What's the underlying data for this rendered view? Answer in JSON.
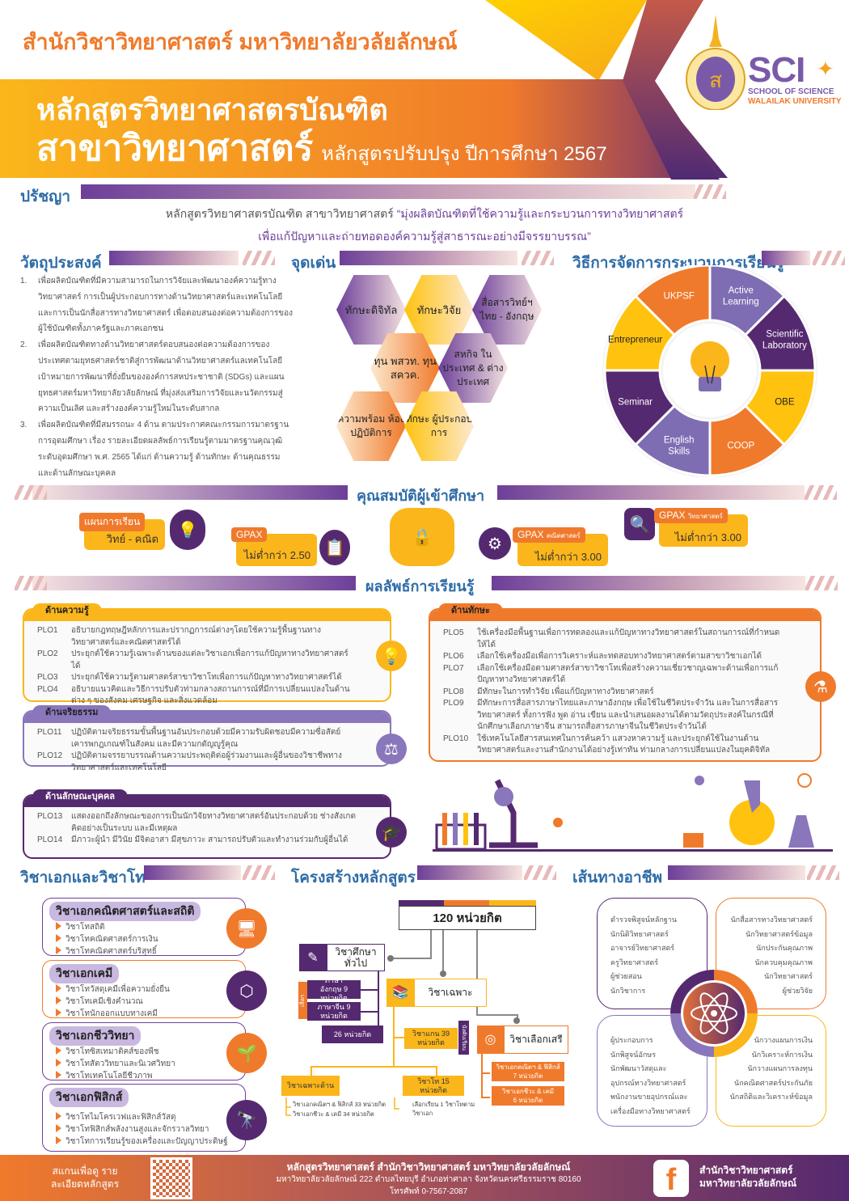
{
  "header": {
    "faculty": "สำนักวิชาวิทยาศาสตร์ มหาวิทยาลัยวลัยลักษณ์",
    "title_line1": "หลักสูตรวิทยาศาสตรบัณฑิต",
    "title_line2": "สาขาวิทยาศาสตร์",
    "title_sub": "หลักสูตรปรับปรุง ปีการศึกษา 2567",
    "logo_text": "SCI",
    "logo_sub1": "SCHOOL OF SCIENCE",
    "logo_sub2": "WALAILAK UNIVERSITY"
  },
  "philosophy": {
    "heading": "ปรัชญา",
    "lead": "หลักสูตรวิทยาศาสตรบัณฑิต สาขาวิทยาศาสตร์",
    "quote1": "“มุ่งผลิตบัณฑิตที่ใช้ความรู้และกระบวนการทางวิทยาศาสตร์",
    "quote2": "เพื่อแก้ปัญหาและถ่ายทอดองค์ความรู้สู่สาธารณะอย่างมีจรรยาบรรณ”"
  },
  "objectives": {
    "heading": "วัตถุประสงค์",
    "items": [
      {
        "n": "1.",
        "text": "เพื่อผลิตบัณฑิตที่มีความสามารถในการวิจัยและพัฒนาองค์ความรู้ทางวิทยาศาสตร์ การเป็นผู้ประกอบการทางด้านวิทยาศาสตร์และเทคโนโลยี และการเป็นนักสื่อสารทางวิทยาศาสตร์ เพื่อตอบสนองต่อความต้องการของผู้ใช้บัณฑิตทั้งภาครัฐและภาคเอกชน"
      },
      {
        "n": "2.",
        "text": "เพื่อผลิตบัณฑิตทางด้านวิทยาศาสตร์ตอบสนองต่อความต้องการของประเทศตามยุทธศาสตร์ชาติสู่การพัฒนาด้านวิทยาศาสตร์แลเทคโนโลยี เป้าหมายการพัฒนาที่ยั่งยืนขององค์การสหประชาชาติ (SDGs) และแผนยุทธศาสตร์มหาวิทยาลัยวลัยลักษณ์ ที่มุ่งส่งเสริมการวิจัยและนวัตกรรมสู่ความเป็นเลิศ และสร้างองค์ความรู้ใหม่ในระดับสากล"
      },
      {
        "n": "3.",
        "text": "เพื่อผลิตบัณฑิตที่มีสมรรถนะ 4 ด้าน ตามประกาศคณะกรรมการมาตรฐานการอุดมศึกษา เรื่อง รายละเอียดผลลัพธ์การเรียนรู้ตามมาตรฐานคุณวุฒิระดับอุดมศึกษา พ.ศ. 2565 ได้แก่ ด้านความรู้ ด้านทักษะ ด้านคุณธรรม และด้านลักษณะบุคคล"
      }
    ]
  },
  "highlights": {
    "heading": "จุดเด่น",
    "items": [
      "ทักษะดิจิทัล",
      "ทักษะวิจัย",
      "สื่อสารวิทย์ฯ ไทย - อังกฤษ",
      "ทุน พสวท. ทุน สควค.",
      "สหกิจ ในประเทศ & ต่างประเทศ",
      "ความพร้อม ห้องปฏิบัติการ",
      "ทักษะ ผู้ประกอบการ"
    ]
  },
  "learning": {
    "heading": "วิธีการจัดการกระบวนการเรียนรู้",
    "segments": [
      {
        "label": "Active Learning",
        "color": "#7f6db3"
      },
      {
        "label": "Scientific Laboratory",
        "color": "#55296f"
      },
      {
        "label": "OBE",
        "color": "#ffc20e"
      },
      {
        "label": "COOP",
        "color": "#f07a2b"
      },
      {
        "label": "English Skills",
        "color": "#7f6db3"
      },
      {
        "label": "Seminar",
        "color": "#55296f"
      },
      {
        "label": "Entrepreneur",
        "color": "#ffc20e"
      },
      {
        "label": "UKPSF",
        "color": "#f07a2b"
      }
    ]
  },
  "admission": {
    "heading": "คุณสมบัติผู้เข้าศึกษา",
    "items": [
      {
        "tag": "แผนการเรียน",
        "value": "วิทย์ - คณิต"
      },
      {
        "tag": "GPAX",
        "value": "ไม่ต่ำกว่า 2.50"
      },
      {
        "tag": "GPAX",
        "tag_sub": "คณิตศาสตร์",
        "value": "ไม่ต่ำกว่า 3.00"
      },
      {
        "tag": "GPAX",
        "tag_sub": "วิทยาศาสตร์",
        "value": "ไม่ต่ำกว่า 3.00"
      }
    ]
  },
  "outcomes": {
    "heading": "ผลลัพธ์การเรียนรู้",
    "knowledge": {
      "title": "ด้านความรู้",
      "rows": [
        {
          "code": "PLO1",
          "text": "อธิบายกฎทฤษฎีหลักการและปรากฏการณ์ต่างๆโดยใช้ความรู้พื้นฐานทางวิทยาศาสตร์และคณิตศาสตร์ได้"
        },
        {
          "code": "PLO2",
          "text": "ประยุกต์ใช้ความรู้เฉพาะด้านของแต่ละวิชาเอกเพื่อการแก้ปัญหาทางวิทยาศาสตร์ได้"
        },
        {
          "code": "PLO3",
          "text": "ประยุกต์ใช้ความรู้ตามศาสตร์สาขาวิชาโทเพื่อการแก้ปัญหาทางวิทยาศาสตร์ได้"
        },
        {
          "code": "PLO4",
          "text": "อธิบายแนวคิดและวิธีการปรับตัวท่ามกลางสถานการณ์ที่มีการเปลี่ยนแปลงในด้านต่าง ๆ ของสังคม เศรษฐกิจ และสิ่งแวดล้อม"
        }
      ]
    },
    "ethics": {
      "title": "ด้านจริยธรรม",
      "rows": [
        {
          "code": "PLO11",
          "text": "ปฏิบัติตามจริยธรรมขั้นพื้นฐานอันประกอบด้วยมีความรับผิดชอบมีความซื่อสัตย์เคารพกฎเกณฑ์ในสังคม และมีความกตัญญูรู้คุณ"
        },
        {
          "code": "PLO12",
          "text": "ปฏิบัติตามจรรยาบรรณด้านความประพฤติต่อผู้ร่วมงานและผู้อื่นของวิชาชีพทางวิทยาศาสตร์และเทคโนโลยี"
        }
      ]
    },
    "character": {
      "title": "ด้านลักษณะบุคคล",
      "rows": [
        {
          "code": "PLO13",
          "text": "แสดงออกถึงลักษณะของการเป็นนักวิจัยทางวิทยาศาสตร์อันประกอบด้วย ช่างสังเกต คิดอย่างเป็นระบบ และมีเหตุผล"
        },
        {
          "code": "PLO14",
          "text": "มีภาวะผู้นำ มีวินัย มีจิตอาสา มีสุขภาวะ สามารถปรับตัวและทำงานร่วมกับผู้อื่นได้"
        }
      ]
    },
    "skills": {
      "title": "ด้านทักษะ",
      "rows": [
        {
          "code": "PLO5",
          "text": "ใช้เครื่องมือพื้นฐานเพื่อการทดลองและแก้ปัญหาทางวิทยาศาสตร์ในสถานการณ์ที่กำหนดให้ได้"
        },
        {
          "code": "PLO6",
          "text": "เลือกใช้เครื่องมือเพื่อการวิเคราะห์และทดสอบทางวิทยาศาสตร์ตามสาขาวิชาเอกได้"
        },
        {
          "code": "PLO7",
          "text": "เลือกใช้เครื่องมือตามศาสตร์สาขาวิชาโทเพื่อสร้างความเชี่ยวชาญเฉพาะด้านเพื่อการแก้ปัญหาทางวิทยาศาสตร์ได้"
        },
        {
          "code": "PLO8",
          "text": "มีทักษะในการทำวิจัย เพื่อแก้ปัญหาทางวิทยาศาสตร์"
        },
        {
          "code": "PLO9",
          "text": "มีทักษะการสื่อสารภาษาไทยและภาษาอังกฤษ เพื่อใช้ในชีวิตประจำวัน และในการสื่อสารวิทยาศาสตร์ ทั้งการฟัง พูด อ่าน เขียน และนำเสนอผลงานได้ตามวัตถุประสงค์ในกรณีที่นักศึกษาเลือกภาษาจีน สามารถสื่อสารภาษาจีนในชีวิตประจำวันได้"
        },
        {
          "code": "PLO10",
          "text": "ใช้เทคโนโลยีสารสนเทศในการค้นคว้า แสวงหาความรู้ และประยุกต์ใช้ในงานด้านวิทยาศาสตร์และงานสำนักงานได้อย่างรู้เท่าทัน ท่ามกลางการเปลี่ยนแปลงในยุคดิจิทัล"
        }
      ]
    }
  },
  "majors": {
    "heading": "วิชาเอกและวิชาโท",
    "items": [
      {
        "title": "วิชาเอกคณิตศาสตร์และสถิติ",
        "minors": [
          "วิชาโทสถิติ",
          "วิชาโทคณิตศาสตร์การเงิน",
          "วิชาโทคณิตศาสตร์บริสุทธิ์"
        ]
      },
      {
        "title": "วิชาเอกเคมี",
        "minors": [
          "วิชาโทวัสดุเคมีเพื่อความยั่งยืน",
          "วิชาโทเคมีเชิงคำนวณ",
          "วิชาโทนักออกแบบทางเคมี"
        ]
      },
      {
        "title": "วิชาเอกชีววิทยา",
        "minors": [
          "วิชาโทซิสเทมาติคส์ของพืช",
          "วิชาโทสัตววิทยาและนิเวศวิทยา",
          "วิชาโทเทคโนโลยีชีวภาพ"
        ]
      },
      {
        "title": "วิชาเอกฟิสิกส์",
        "minors": [
          "วิชาโทไมโครเวฟและฟิสิกส์วัสดุ",
          "วิชาโทฟิสิกส์พลังงานสูงและจักรวาลวิทยา",
          "วิชาโทการเรียนรู้ของเครื่องและปัญญาประดิษฐ์"
        ]
      }
    ]
  },
  "structure": {
    "heading": "โครงสร้างหลักสูตร",
    "total": "120 หน่วยกิต",
    "general": "วิชาศึกษาทั่วไป",
    "general_choose": "เลือก",
    "english": "ภาษาอังกฤษ 9 หน่วยกิต",
    "chinese": "ภาษาจีน 9 หน่วยกิต",
    "general_credits": "26 หน่วยกิต",
    "specific": "วิชาเฉพาะ",
    "core": "วิชาแกน 39 หน่วยกิต",
    "core_tag": "บังคับเรียน",
    "specialized": "วิชาเฉพาะด้าน",
    "specialized_1": "วิชาเอกคณิตฯ & ฟิสิกส์ 33 หน่วยกิต",
    "specialized_2": "วิชาเอกชีวะ & เคมี 34 หน่วยกิต",
    "minor": "วิชาโท 15 หน่วยกิต",
    "minor_note": "เลือกเรียน 1 วิชาโทตาม วิชาเอก",
    "free": "วิชาเลือกเสรี",
    "free_1": "วิชาเอกคณิตฯ & ฟิสิกส์ 7 หน่วยกิต",
    "free_2": "วิชาเอกชีวะ & เคมี 6 หน่วยกิต"
  },
  "careers": {
    "heading": "เส้นทางอาชีพ",
    "groups": [
      [
        "ตำรวจพิสูจน์หลักฐาน",
        "นักนิติวิทยาศาสตร์",
        "อาจารย์วิทยาศาสตร์",
        "ครูวิทยาศาสตร์",
        "ผู้ช่วยสอน",
        "นักวิชาการ"
      ],
      [
        "นักสื่อสารทางวิทยาศาสตร์",
        "นักวิทยาศาสตร์ข้อมูล",
        "นักประกันคุณภาพ",
        "นักควบคุมคุณภาพ",
        "นักวิทยาศาสตร์",
        "ผู้ช่วยวิจัย"
      ],
      [
        "ผู้ประกอบการ",
        "นักพิสูจน์อักษร",
        "นักพัฒนาวัสดุและ",
        "อุปกรณ์ทางวิทยาศาสตร์",
        "พนักงานขายอุปกรณ์และ",
        "เครื่องมือทางวิทยาศาสตร์"
      ],
      [
        "นักวางแผนการเงิน",
        "นักวิเคราะห์การเงิน",
        "นักวางแผนการลงทุน",
        "นักคณิตศาสตร์ประกันภัย",
        "นักสถิติและวิเคราะห์ข้อมูล"
      ]
    ]
  },
  "footer": {
    "scan": "สแกนเพื่อดู รายละเอียดหลักสูตร",
    "line1": "หลักสูตรวิทยาศาสตร์ สำนักวิชาวิทยาศาสตร์ มหาวิทยาลัยวลัยลักษณ์",
    "line2": "มหาวิทยาลัยวลัยลักษณ์ 222 ตำบลไทยบุรี อำเภอท่าศาลา จังหวัดนครศรีธรรมราช 80160",
    "line3": "โทรศัพท์ 0-7567-2087",
    "fb_icon": "f",
    "fb_name": "สำนักวิชาวิทยาศาสตร์ มหาวิทยาลัยวลัยลักษณ์"
  },
  "colors": {
    "purple": "#55296f",
    "orange": "#f07a2b",
    "yellow": "#fbb61b",
    "blue": "#2e6ca7"
  }
}
